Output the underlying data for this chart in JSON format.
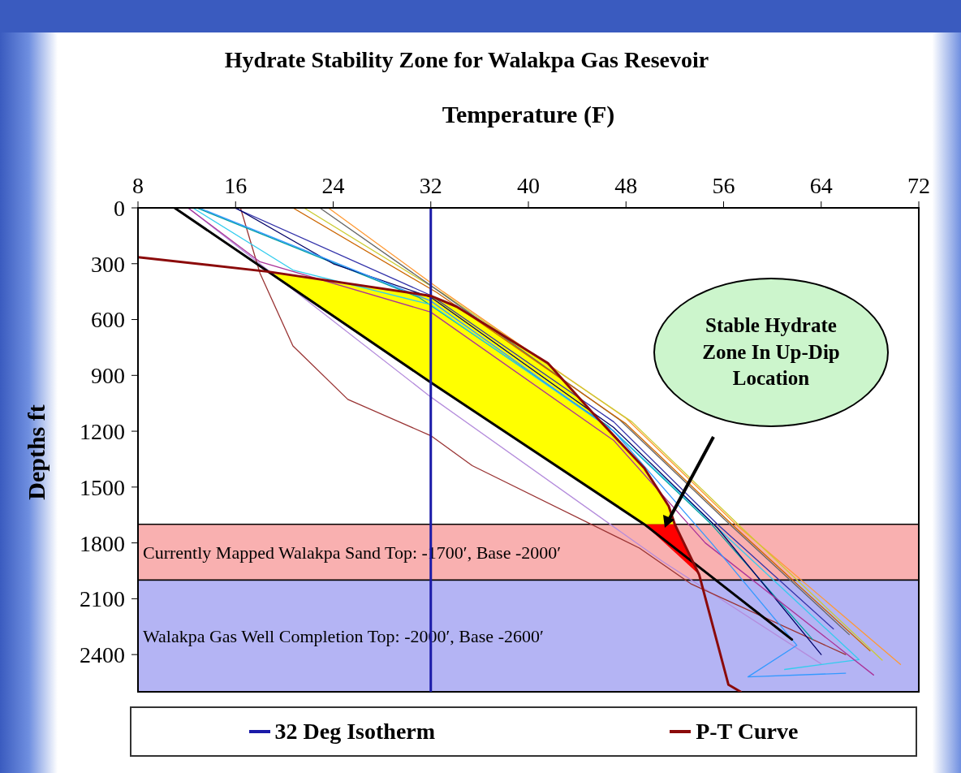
{
  "chart_data": {
    "type": "line",
    "title": "Hydrate Stability Zone for Walakpa Gas Resevoir",
    "xlabel": "Temperature (F)",
    "ylabel": "Depths ft",
    "xlim": [
      8,
      72
    ],
    "xticks": [
      8,
      16,
      24,
      32,
      40,
      48,
      56,
      64,
      72
    ],
    "ylim": [
      2600,
      0
    ],
    "yticks": [
      0,
      300,
      600,
      900,
      1200,
      1500,
      1800,
      2100,
      2400
    ],
    "legend": "bottom",
    "bands": [
      {
        "axis": "y",
        "from": 1700,
        "to": 2000,
        "label": "Currently Mapped Walakpa Sand Top: -1700′, Base -2000′",
        "color": "#f9b0b0"
      },
      {
        "axis": "y",
        "from": 2000,
        "to": 2600,
        "label": "Walakpa Gas Well Completion Top: -2000′, Base -2600′",
        "color": "#b4b4f4"
      }
    ],
    "annotations": [
      "Stable Hydrate Zone In Up-Dip Location"
    ],
    "series": [
      {
        "type": "area",
        "color": "#ffff00",
        "x": [
          18.7,
          25,
          32,
          34.1,
          41.6,
          45.7,
          49.5,
          51.5,
          52,
          49.5,
          32,
          18.7
        ],
        "values": [
          343,
          410,
          473,
          530,
          834,
          1133,
          1398,
          1602,
          1700,
          1700,
          938,
          343
        ]
      },
      {
        "type": "area",
        "color": "#ff0000",
        "x": [
          49.5,
          52,
          54
        ],
        "values": [
          1700,
          1700,
          1971
        ]
      },
      {
        "color": "#b48cdc",
        "x": [
          12.1,
          32,
          51,
          64
        ],
        "values": [
          0,
          1016,
          1900,
          2450
        ]
      },
      {
        "color": "#993333",
        "x": [
          16.4,
          18,
          20.7,
          25.2,
          32,
          35.4,
          49.1,
          53.3,
          66
        ],
        "values": [
          0,
          351,
          742,
          1029,
          1224,
          1385,
          1828,
          2019,
          2400
        ]
      },
      {
        "color": "#3333aa",
        "x": [
          15.9,
          32,
          47,
          55.5,
          65
        ],
        "values": [
          0,
          470,
          1150,
          1700,
          2262
        ]
      },
      {
        "color": "#00a0a0",
        "x": [
          12.8,
          31,
          46.5,
          55,
          63.3
        ],
        "values": [
          0,
          480,
          1170,
          1700,
          2319
        ]
      },
      {
        "color": "#33ccee",
        "x": [
          12.5,
          20.7,
          32,
          47,
          56,
          67.1,
          61
        ],
        "values": [
          0,
          334,
          520,
          1200,
          1750,
          2427,
          2480
        ]
      },
      {
        "color": "#ff9933",
        "x": [
          23.6,
          33,
          48,
          57,
          70.5
        ],
        "values": [
          0,
          450,
          1130,
          1700,
          2453
        ]
      },
      {
        "color": "#cccc33",
        "x": [
          21.6,
          33,
          48.5,
          57.5,
          69
        ],
        "values": [
          0,
          460,
          1150,
          1720,
          2430
        ]
      },
      {
        "color": "#666666",
        "x": [
          22.9,
          32.5,
          47.5,
          56.5,
          66.3
        ],
        "values": [
          0,
          440,
          1140,
          1700,
          2293
        ]
      },
      {
        "color": "#cc6600",
        "x": [
          20.7,
          32.5,
          48,
          57,
          68
        ],
        "values": [
          0,
          455,
          1160,
          1720,
          2380
        ]
      },
      {
        "color": "#000066",
        "x": [
          16,
          24,
          32,
          47,
          55.5,
          64
        ],
        "values": [
          0,
          300,
          480,
          1180,
          1720,
          2400
        ]
      },
      {
        "color": "#aa3399",
        "x": [
          12.1,
          18,
          32,
          47,
          54.5,
          68.3
        ],
        "values": [
          0,
          290,
          560,
          1250,
          1800,
          2510
        ]
      },
      {
        "color": "#3399ff",
        "x": [
          13,
          32,
          47,
          55,
          62,
          58,
          66
        ],
        "values": [
          0,
          500,
          1200,
          1800,
          2350,
          2520,
          2500
        ]
      },
      {
        "color": "#000000",
        "x": [
          11,
          32,
          49.5,
          61.6
        ],
        "values": [
          0,
          938,
          1700,
          2319
        ]
      },
      {
        "name": "32 Deg Isotherm",
        "color": "#1a1aa8",
        "x": [
          32,
          32
        ],
        "values": [
          0,
          2600
        ]
      },
      {
        "name": "P-T Curve",
        "color": "#8b0a0a",
        "x": [
          8,
          18.7,
          32,
          34.1,
          41.6,
          45.7,
          49.5,
          51.5,
          52,
          54,
          56.4,
          57.4
        ],
        "values": [
          265,
          343,
          473,
          530,
          834,
          1133,
          1398,
          1602,
          1700,
          1971,
          2562,
          2600
        ]
      }
    ]
  }
}
